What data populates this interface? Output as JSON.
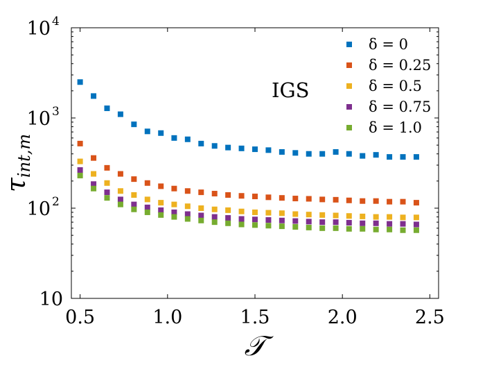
{
  "chart_data": {
    "type": "scatter",
    "yscale": "log",
    "xlim": [
      0.45,
      2.55
    ],
    "ylim": [
      10,
      10000
    ],
    "xticks": [
      0.5,
      1.0,
      1.5,
      2.0,
      2.5
    ],
    "xtick_labels": [
      "0.5",
      "1.0",
      "1.5",
      "2.0",
      "2.5"
    ],
    "yticks": [
      {
        "value": 10,
        "base": "10",
        "exp": ""
      },
      {
        "value": 100,
        "base": "10",
        "exp": "2"
      },
      {
        "value": 1000,
        "base": "10",
        "exp": "3"
      },
      {
        "value": 10000,
        "base": "10",
        "exp": "4"
      }
    ],
    "xlabel": "𝒯",
    "ylabel": {
      "main": "τ",
      "sub": "int,m"
    },
    "annotation": "IGS",
    "legend_position": "top-right",
    "x": [
      0.5,
      0.577,
      0.654,
      0.731,
      0.808,
      0.885,
      0.962,
      1.038,
      1.115,
      1.192,
      1.269,
      1.346,
      1.423,
      1.5,
      1.577,
      1.654,
      1.731,
      1.808,
      1.885,
      1.962,
      2.038,
      2.115,
      2.192,
      2.269,
      2.346,
      2.423
    ],
    "series": [
      {
        "name": "δ = 0",
        "color": "#0072BD",
        "values": [
          2500,
          1750,
          1280,
          1100,
          850,
          710,
          680,
          600,
          580,
          520,
          490,
          470,
          460,
          450,
          440,
          420,
          410,
          400,
          400,
          420,
          400,
          380,
          390,
          370,
          370,
          370
        ]
      },
      {
        "name": "δ = 0.25",
        "color": "#D95319",
        "values": [
          520,
          360,
          280,
          240,
          210,
          190,
          175,
          165,
          155,
          150,
          145,
          140,
          137,
          135,
          132,
          130,
          128,
          127,
          125,
          124,
          122,
          120,
          120,
          118,
          118,
          115
        ]
      },
      {
        "name": "δ = 0.5",
        "color": "#EDB120",
        "values": [
          330,
          240,
          190,
          155,
          140,
          125,
          115,
          110,
          105,
          100,
          97,
          95,
          92,
          90,
          89,
          88,
          86,
          85,
          84,
          83,
          82,
          81,
          80,
          80,
          79,
          79
        ]
      },
      {
        "name": "δ = 0.75",
        "color": "#7E2F8E",
        "values": [
          265,
          185,
          150,
          125,
          110,
          102,
          95,
          90,
          86,
          83,
          80,
          78,
          76,
          75,
          74,
          73,
          72,
          71,
          70,
          70,
          69,
          68,
          68,
          67,
          67,
          66
        ]
      },
      {
        "name": "δ = 1.0",
        "color": "#77AC30",
        "values": [
          230,
          165,
          130,
          110,
          97,
          90,
          84,
          80,
          76,
          73,
          70,
          68,
          66,
          65,
          64,
          63,
          62,
          61,
          60,
          60,
          59,
          59,
          58,
          58,
          57,
          57
        ]
      }
    ]
  }
}
